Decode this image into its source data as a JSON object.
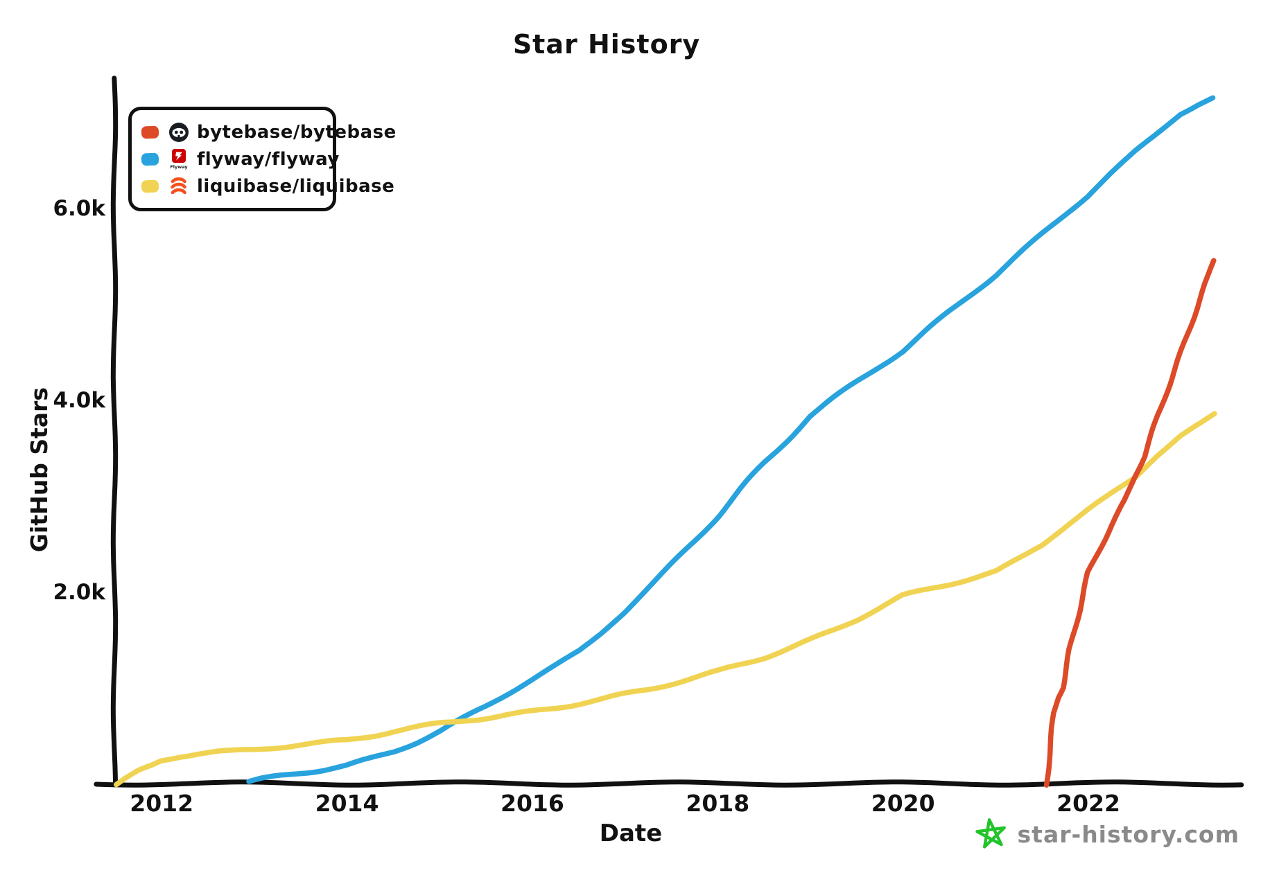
{
  "title": "Star History",
  "legend": {
    "items": [
      {
        "name": "bytebase/bytebase",
        "color": "#dc4a28",
        "icon": "bytebase-avatar-icon"
      },
      {
        "name": "flyway/flyway",
        "color": "#29a3dd",
        "icon": "flyway-avatar-icon"
      },
      {
        "name": "liquibase/liquibase",
        "color": "#f0d352",
        "icon": "liquibase-avatar-icon"
      }
    ]
  },
  "watermark": {
    "text": "star-history.com",
    "text_color": "#8a8a8a",
    "star_color": "#22c32b"
  },
  "chart_data": {
    "type": "line",
    "title": "Star History",
    "xlabel": "Date",
    "ylabel": "GitHub Stars",
    "grid": false,
    "legend_position": "top-left",
    "axis_color": "#111111",
    "xlim": [
      2011.49,
      2023.66
    ],
    "ylim": [
      0,
      7330
    ],
    "x_ticks": [
      {
        "value": 2012,
        "label": "2012"
      },
      {
        "value": 2014,
        "label": "2014"
      },
      {
        "value": 2016,
        "label": "2016"
      },
      {
        "value": 2018,
        "label": "2018"
      },
      {
        "value": 2020,
        "label": "2020"
      },
      {
        "value": 2022,
        "label": "2022"
      }
    ],
    "y_ticks": [
      {
        "value": 2000,
        "label": "2.0k"
      },
      {
        "value": 4000,
        "label": "4.0k"
      },
      {
        "value": 6000,
        "label": "6.0k"
      }
    ],
    "series": [
      {
        "name": "flyway/flyway",
        "color": "#29a3dd",
        "points": [
          [
            2012.95,
            30
          ],
          [
            2013.1,
            60
          ],
          [
            2013.3,
            95
          ],
          [
            2013.5,
            125
          ],
          [
            2013.75,
            160
          ],
          [
            2014.0,
            200
          ],
          [
            2014.25,
            270
          ],
          [
            2014.5,
            350
          ],
          [
            2014.75,
            450
          ],
          [
            2015.0,
            560
          ],
          [
            2015.25,
            690
          ],
          [
            2015.5,
            820
          ],
          [
            2015.75,
            960
          ],
          [
            2016.0,
            1100
          ],
          [
            2016.25,
            1245
          ],
          [
            2016.5,
            1400
          ],
          [
            2016.75,
            1590
          ],
          [
            2017.0,
            1800
          ],
          [
            2017.25,
            2050
          ],
          [
            2017.5,
            2300
          ],
          [
            2017.75,
            2550
          ],
          [
            2018.0,
            2800
          ],
          [
            2018.25,
            3080
          ],
          [
            2018.5,
            3350
          ],
          [
            2018.75,
            3600
          ],
          [
            2019.0,
            3850
          ],
          [
            2019.25,
            4030
          ],
          [
            2019.5,
            4200
          ],
          [
            2019.75,
            4370
          ],
          [
            2020.0,
            4530
          ],
          [
            2020.25,
            4730
          ],
          [
            2020.5,
            4930
          ],
          [
            2020.75,
            5130
          ],
          [
            2021.0,
            5320
          ],
          [
            2021.25,
            5530
          ],
          [
            2021.5,
            5740
          ],
          [
            2021.75,
            5950
          ],
          [
            2022.0,
            6150
          ],
          [
            2022.25,
            6380
          ],
          [
            2022.5,
            6600
          ],
          [
            2022.75,
            6800
          ],
          [
            2023.0,
            7000
          ],
          [
            2023.2,
            7100
          ],
          [
            2023.35,
            7160
          ]
        ]
      },
      {
        "name": "liquibase/liquibase",
        "color": "#f0d352",
        "points": [
          [
            2011.5,
            0
          ],
          [
            2011.6,
            60
          ],
          [
            2011.75,
            140
          ],
          [
            2011.9,
            200
          ],
          [
            2012.0,
            250
          ],
          [
            2012.2,
            300
          ],
          [
            2012.4,
            330
          ],
          [
            2012.6,
            345
          ],
          [
            2012.8,
            350
          ],
          [
            2013.0,
            365
          ],
          [
            2013.25,
            395
          ],
          [
            2013.5,
            420
          ],
          [
            2013.75,
            440
          ],
          [
            2014.0,
            465
          ],
          [
            2014.25,
            510
          ],
          [
            2014.5,
            560
          ],
          [
            2014.75,
            600
          ],
          [
            2015.0,
            640
          ],
          [
            2015.25,
            675
          ],
          [
            2015.5,
            700
          ],
          [
            2015.75,
            730
          ],
          [
            2016.0,
            765
          ],
          [
            2016.25,
            805
          ],
          [
            2016.5,
            850
          ],
          [
            2016.75,
            895
          ],
          [
            2017.0,
            945
          ],
          [
            2017.25,
            995
          ],
          [
            2017.5,
            1055
          ],
          [
            2017.75,
            1115
          ],
          [
            2018.0,
            1180
          ],
          [
            2018.25,
            1255
          ],
          [
            2018.5,
            1330
          ],
          [
            2018.75,
            1420
          ],
          [
            2019.0,
            1515
          ],
          [
            2019.25,
            1615
          ],
          [
            2019.5,
            1725
          ],
          [
            2019.75,
            1845
          ],
          [
            2020.0,
            1970
          ],
          [
            2020.25,
            2030
          ],
          [
            2020.5,
            2095
          ],
          [
            2020.75,
            2160
          ],
          [
            2021.0,
            2225
          ],
          [
            2021.25,
            2360
          ],
          [
            2021.5,
            2505
          ],
          [
            2021.75,
            2690
          ],
          [
            2022.0,
            2870
          ],
          [
            2022.25,
            3040
          ],
          [
            2022.5,
            3210
          ],
          [
            2022.75,
            3440
          ],
          [
            2023.0,
            3640
          ],
          [
            2023.2,
            3760
          ],
          [
            2023.35,
            3860
          ]
        ]
      },
      {
        "name": "bytebase/bytebase",
        "color": "#dc4a28",
        "points": [
          [
            2021.55,
            0
          ],
          [
            2021.57,
            250
          ],
          [
            2021.6,
            500
          ],
          [
            2021.63,
            750
          ],
          [
            2021.67,
            900
          ],
          [
            2021.72,
            1000
          ],
          [
            2021.8,
            1400
          ],
          [
            2021.9,
            1800
          ],
          [
            2022.0,
            2210
          ],
          [
            2022.1,
            2420
          ],
          [
            2022.25,
            2720
          ],
          [
            2022.4,
            2990
          ],
          [
            2022.5,
            3230
          ],
          [
            2022.6,
            3420
          ],
          [
            2022.75,
            3840
          ],
          [
            2022.9,
            4230
          ],
          [
            2023.0,
            4500
          ],
          [
            2023.1,
            4780
          ],
          [
            2023.2,
            5060
          ],
          [
            2023.3,
            5330
          ],
          [
            2023.35,
            5480
          ]
        ]
      }
    ]
  }
}
